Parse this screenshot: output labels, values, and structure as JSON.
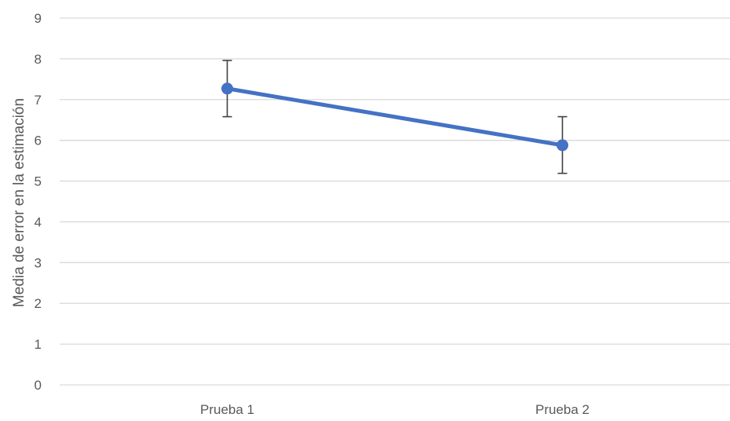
{
  "chart_data": {
    "type": "line",
    "title": "",
    "xlabel": "",
    "ylabel": "Media de error en la estimación",
    "categories": [
      "Prueba 1",
      "Prueba 2"
    ],
    "series": [
      {
        "values": [
          7.27,
          5.88
        ],
        "error_low": [
          6.58,
          5.19
        ],
        "error_high": [
          7.96,
          6.58
        ]
      }
    ],
    "ylim": [
      0,
      9
    ],
    "yticks": [
      "0",
      "1",
      "2",
      "3",
      "4",
      "5",
      "6",
      "7",
      "8",
      "9"
    ],
    "grid": true,
    "legend": "none",
    "colors": {
      "series": "#4472c4",
      "grid": "#d9d9d9",
      "error_bar": "#404040",
      "text": "#595959"
    }
  }
}
